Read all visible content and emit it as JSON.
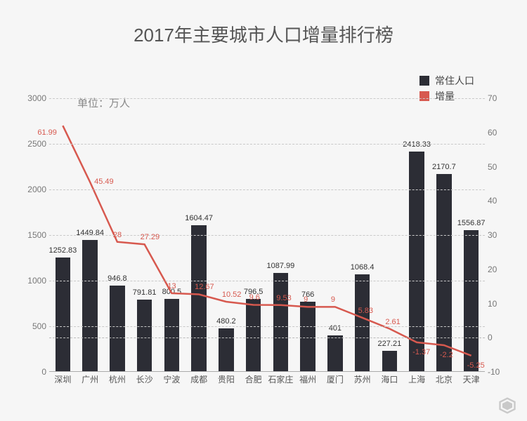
{
  "title": "2017年主要城市人口增量排行榜",
  "title_fontsize": 26,
  "unit_label": "单位：万人",
  "unit_label_fontsize": 15,
  "background_color": "#f6f6f6",
  "legend": {
    "bar_label": "常住人口",
    "line_label": "增量",
    "bar_color": "#2c2d35",
    "line_color": "#d7594f"
  },
  "chart": {
    "type": "bar+line",
    "categories": [
      "深圳",
      "广州",
      "杭州",
      "长沙",
      "宁波",
      "成都",
      "贵阳",
      "合肥",
      "石家庄",
      "福州",
      "厦门",
      "苏州",
      "海口",
      "上海",
      "北京",
      "天津"
    ],
    "bar_values": [
      1252.83,
      1449.84,
      946.8,
      791.81,
      800.5,
      1604.47,
      480.2,
      796.5,
      1087.99,
      766,
      401,
      1068.4,
      227.21,
      2418.33,
      2170.7,
      1556.87
    ],
    "bar_value_labels": [
      "1252.83",
      "1449.84",
      "946.8",
      "791.81",
      "800.5",
      "1604.47",
      "480.2",
      "796.5",
      "1087.99",
      "766",
      "401",
      "1068.4",
      "227.21",
      "2418.33",
      "2170.7",
      "1556.87"
    ],
    "line_values": [
      61.99,
      45.49,
      28,
      27.29,
      13,
      12.67,
      10.52,
      9.6,
      9.53,
      9,
      9,
      5.83,
      2.61,
      -1.37,
      -2.2,
      -5.25
    ],
    "line_value_labels": [
      "61.99",
      "45.49",
      "28",
      "27.29",
      "13",
      "12.67",
      "10.52",
      "9.6",
      "9.53",
      "9",
      "9",
      "5.83",
      "2.61",
      "-1.37",
      "-2.2",
      "-5.25"
    ],
    "bar_color": "#2c2d35",
    "line_color": "#d7594f",
    "line_width": 2.5,
    "bar_width_ratio": 0.55,
    "y_left": {
      "min": 0,
      "max": 3000,
      "step": 500
    },
    "y_right": {
      "min": -10,
      "max": 70,
      "step": 10
    },
    "grid_color": "#c9c9c9",
    "axis_color": "#aaaaaa",
    "label_fontsize": 11,
    "tick_fontsize": 12,
    "tick_color": "#777777",
    "x_label_color": "#555555",
    "bar_label_color": "#333333",
    "line_label_color": "#d7594f"
  }
}
